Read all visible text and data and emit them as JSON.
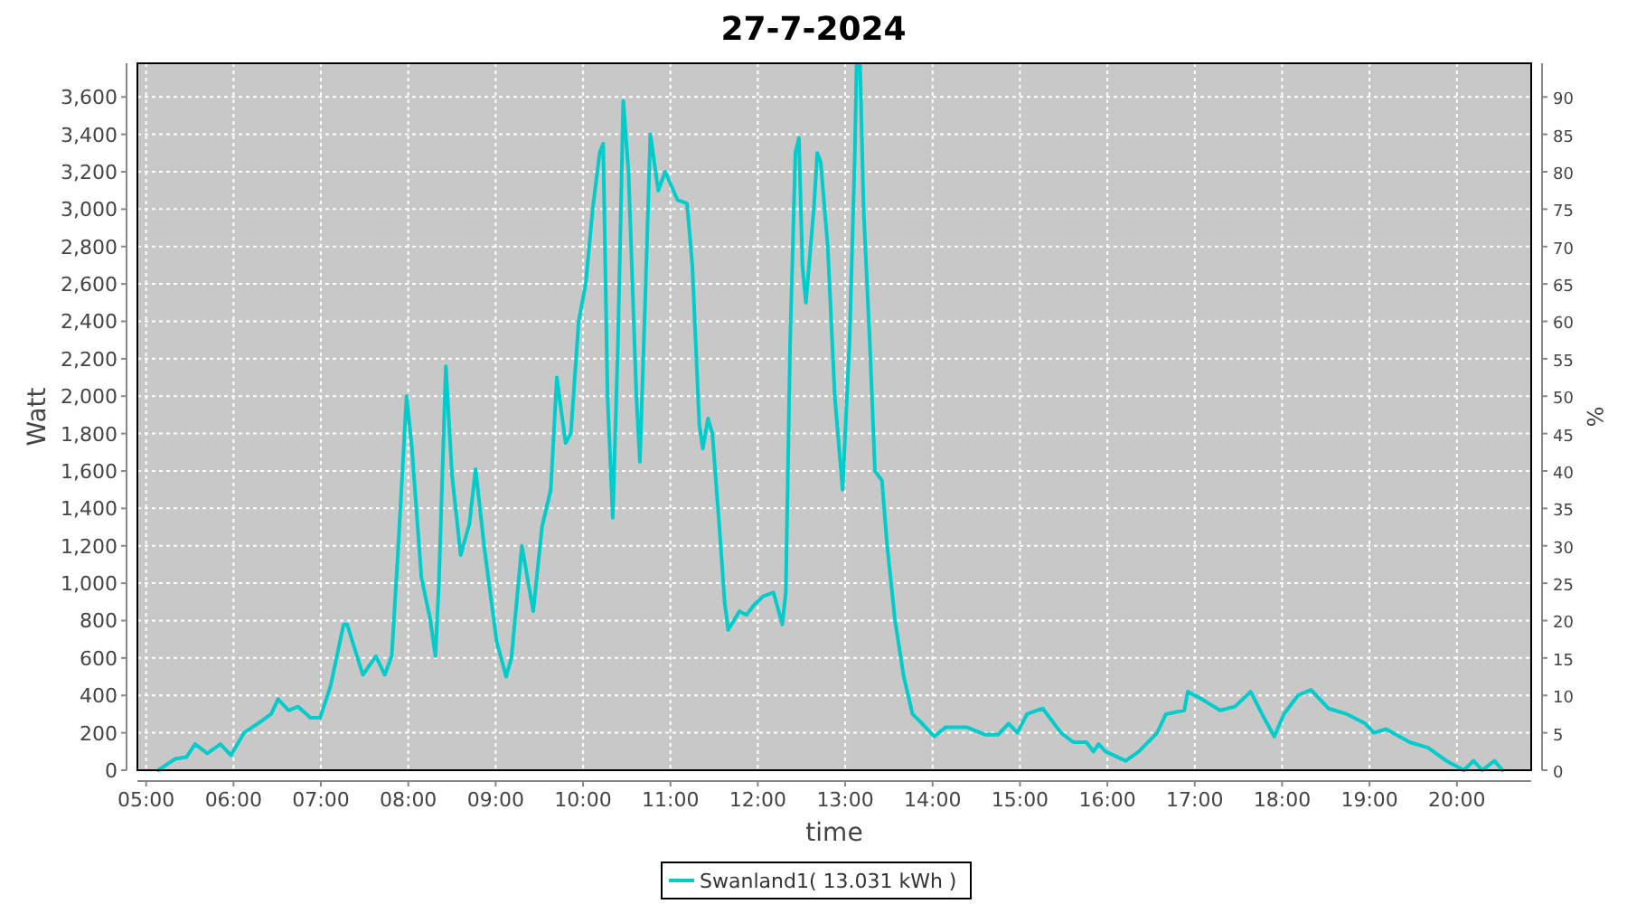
{
  "chart_data": {
    "type": "line",
    "title": "27-7-2024",
    "xlabel": "time",
    "ylabel": "Watt",
    "y2label": "%",
    "xlim": [
      4.9,
      20.85
    ],
    "xticks": [
      {
        "value": 5,
        "label": "05:00"
      },
      {
        "value": 6,
        "label": "06:00"
      },
      {
        "value": 7,
        "label": "07:00"
      },
      {
        "value": 8,
        "label": "08:00"
      },
      {
        "value": 9,
        "label": "09:00"
      },
      {
        "value": 10,
        "label": "10:00"
      },
      {
        "value": 11,
        "label": "11:00"
      },
      {
        "value": 12,
        "label": "12:00"
      },
      {
        "value": 13,
        "label": "13:00"
      },
      {
        "value": 14,
        "label": "14:00"
      },
      {
        "value": 15,
        "label": "15:00"
      },
      {
        "value": 16,
        "label": "16:00"
      },
      {
        "value": 17,
        "label": "17:00"
      },
      {
        "value": 18,
        "label": "18:00"
      },
      {
        "value": 19,
        "label": "19:00"
      },
      {
        "value": 20,
        "label": "20:00"
      }
    ],
    "ylim": [
      0,
      3780
    ],
    "yticks": [
      0,
      200,
      400,
      600,
      800,
      {
        "value": 1000,
        "label": "1,000"
      },
      {
        "value": 1200,
        "label": "1,200"
      },
      {
        "value": 1400,
        "label": "1,400"
      },
      {
        "value": 1600,
        "label": "1,600"
      },
      {
        "value": 1800,
        "label": "1,800"
      },
      {
        "value": 2000,
        "label": "2,000"
      },
      {
        "value": 2200,
        "label": "2,200"
      },
      {
        "value": 2400,
        "label": "2,400"
      },
      {
        "value": 2600,
        "label": "2,600"
      },
      {
        "value": 2800,
        "label": "2,800"
      },
      {
        "value": 3000,
        "label": "3,000"
      },
      {
        "value": 3200,
        "label": "3,200"
      },
      {
        "value": 3400,
        "label": "3,400"
      },
      {
        "value": 3600,
        "label": "3,600"
      }
    ],
    "y2lim": [
      0,
      94.5
    ],
    "y2ticks": [
      0,
      5,
      10,
      15,
      20,
      25,
      30,
      35,
      40,
      45,
      50,
      55,
      60,
      65,
      70,
      75,
      80,
      85,
      90
    ],
    "grid": true,
    "legend": "bottom",
    "series": [
      {
        "name": "Swanland1( 13.031 kWh )",
        "color": "#00cccc",
        "x": [
          5.14,
          5.33,
          5.46,
          5.56,
          5.7,
          5.85,
          5.97,
          6.12,
          6.28,
          6.43,
          6.51,
          6.63,
          6.74,
          6.88,
          6.99,
          7.11,
          7.26,
          7.3,
          7.48,
          7.63,
          7.73,
          7.81,
          7.88,
          7.98,
          8.04,
          8.15,
          8.25,
          8.31,
          8.35,
          8.43,
          8.5,
          8.6,
          8.7,
          8.77,
          8.87,
          9.01,
          9.12,
          9.18,
          9.3,
          9.43,
          9.53,
          9.63,
          9.7,
          9.8,
          9.86,
          9.95,
          10.03,
          10.11,
          10.19,
          10.23,
          10.28,
          10.34,
          10.4,
          10.46,
          10.52,
          10.61,
          10.65,
          10.71,
          10.77,
          10.86,
          10.94,
          11.08,
          11.19,
          11.25,
          11.33,
          11.37,
          11.43,
          11.48,
          11.56,
          11.62,
          11.66,
          11.79,
          11.87,
          11.95,
          12.06,
          12.18,
          12.28,
          12.32,
          12.37,
          12.43,
          12.47,
          12.51,
          12.55,
          12.64,
          12.68,
          12.72,
          12.8,
          12.88,
          12.97,
          13.05,
          13.11,
          13.13,
          13.17,
          13.21,
          13.28,
          13.34,
          13.42,
          13.48,
          13.57,
          13.67,
          13.77,
          13.88,
          14.02,
          14.15,
          14.39,
          14.6,
          14.75,
          14.87,
          14.97,
          15.08,
          15.26,
          15.47,
          15.61,
          15.76,
          15.84,
          15.9,
          15.98,
          16.21,
          16.36,
          16.57,
          16.67,
          16.88,
          16.92,
          17.08,
          17.29,
          17.46,
          17.64,
          17.77,
          17.91,
          18.02,
          18.18,
          18.33,
          18.53,
          18.74,
          18.95,
          19.05,
          19.19,
          19.46,
          19.67,
          19.88,
          20.08,
          20.19,
          20.29,
          20.43,
          20.52
        ],
        "values": [
          0,
          60,
          70,
          140,
          90,
          140,
          80,
          200,
          250,
          300,
          380,
          320,
          340,
          280,
          280,
          450,
          780,
          780,
          510,
          610,
          510,
          610,
          1150,
          2000,
          1730,
          1030,
          810,
          610,
          1000,
          2160,
          1580,
          1150,
          1320,
          1610,
          1190,
          690,
          500,
          600,
          1200,
          850,
          1300,
          1500,
          2100,
          1750,
          1800,
          2400,
          2600,
          3000,
          3300,
          3350,
          2000,
          1350,
          2300,
          3580,
          3200,
          2000,
          1650,
          2500,
          3400,
          3100,
          3200,
          3050,
          3030,
          2700,
          1850,
          1720,
          1880,
          1800,
          1300,
          900,
          750,
          850,
          830,
          880,
          930,
          950,
          780,
          950,
          2300,
          3300,
          3380,
          2700,
          2500,
          3000,
          3300,
          3250,
          2800,
          2000,
          1500,
          2300,
          3300,
          3770,
          3770,
          3000,
          2300,
          1600,
          1550,
          1200,
          800,
          500,
          300,
          250,
          180,
          230,
          230,
          190,
          190,
          250,
          200,
          300,
          330,
          200,
          150,
          150,
          100,
          140,
          100,
          50,
          100,
          200,
          300,
          320,
          420,
          380,
          320,
          340,
          420,
          300,
          180,
          300,
          400,
          430,
          330,
          300,
          250,
          200,
          220,
          150,
          120,
          50,
          0,
          50,
          0,
          50,
          0
        ]
      }
    ]
  }
}
